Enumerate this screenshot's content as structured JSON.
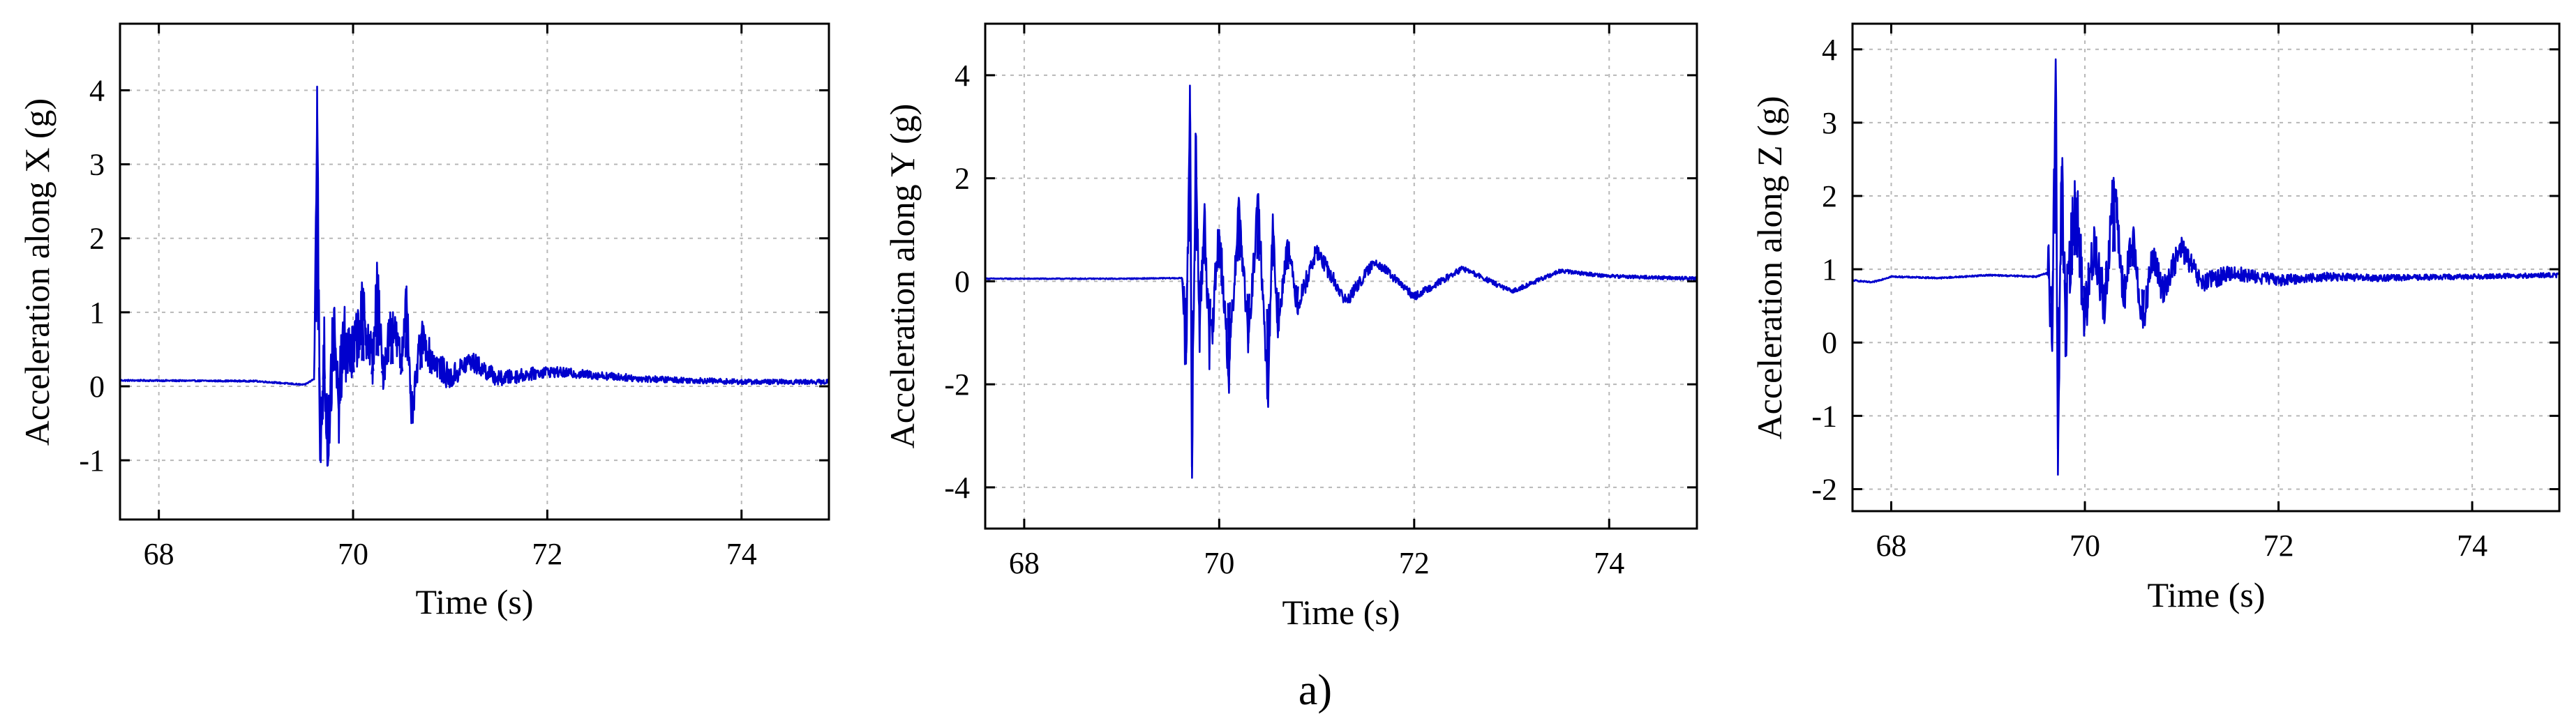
{
  "figure_label": "a)",
  "colors": {
    "series": "#0000cd",
    "grid": "#b8b8b8"
  },
  "chart_data": [
    {
      "type": "line",
      "xlabel": "Time (s)",
      "ylabel": "Acceleration along X (g)",
      "xlim": [
        67.6,
        74.9
      ],
      "ylim": [
        -1.8,
        4.9
      ],
      "xticks": [
        68,
        70,
        72,
        74
      ],
      "yticks": [
        -1,
        0,
        1,
        2,
        3,
        4
      ],
      "grid": true,
      "series": [
        {
          "color": "#0000cd",
          "baseline": 0.07,
          "onset": 69.62,
          "x": [
            67.6,
            69.0,
            69.5,
            69.6,
            69.63,
            69.66,
            69.7,
            69.74,
            69.8,
            69.85,
            69.9,
            70.0,
            70.1,
            70.2,
            70.25,
            70.3,
            70.4,
            70.5,
            70.55,
            70.6,
            70.7,
            70.8,
            71.0,
            71.2,
            71.5,
            72.0,
            72.5,
            73.0,
            74.0,
            74.9
          ],
          "y": [
            0.08,
            0.07,
            0.02,
            0.1,
            4.05,
            -1.0,
            0.5,
            -0.8,
            0.75,
            -0.3,
            0.6,
            0.4,
            1.05,
            0.3,
            1.45,
            0.2,
            0.9,
            0.3,
            1.35,
            -0.5,
            0.7,
            0.4,
            0.1,
            0.35,
            0.1,
            0.2,
            0.15,
            0.1,
            0.06,
            0.06
          ]
        }
      ]
    },
    {
      "type": "line",
      "xlabel": "Time (s)",
      "ylabel": "Acceleration along Y (g)",
      "xlim": [
        67.6,
        74.9
      ],
      "ylim": [
        -4.8,
        5.0
      ],
      "xticks": [
        68,
        70,
        72,
        74
      ],
      "yticks": [
        -4,
        -2,
        0,
        2,
        4
      ],
      "grid": true,
      "series": [
        {
          "color": "#0000cd",
          "baseline": 0.05,
          "onset": 69.62,
          "x": [
            67.6,
            69.0,
            69.5,
            69.62,
            69.66,
            69.7,
            69.72,
            69.76,
            69.8,
            69.85,
            69.9,
            70.0,
            70.1,
            70.2,
            70.3,
            70.4,
            70.5,
            70.55,
            70.6,
            70.7,
            70.8,
            71.0,
            71.3,
            71.6,
            72.0,
            72.5,
            73.0,
            73.5,
            74.0,
            74.9
          ],
          "y": [
            0.05,
            0.05,
            0.06,
            0.06,
            -1.6,
            3.8,
            -3.6,
            2.8,
            -1.0,
            1.5,
            -1.5,
            1.0,
            -1.8,
            1.5,
            -1.2,
            1.6,
            -2.3,
            1.3,
            -1.0,
            0.8,
            -0.5,
            0.6,
            -0.4,
            0.4,
            -0.3,
            0.25,
            -0.2,
            0.2,
            0.1,
            0.05
          ]
        }
      ]
    },
    {
      "type": "line",
      "xlabel": "Time (s)",
      "ylabel": "Acceleration along Z (g)",
      "xlim": [
        67.6,
        74.9
      ],
      "ylim": [
        -2.3,
        4.35
      ],
      "xticks": [
        68,
        70,
        72,
        74
      ],
      "yticks": [
        -2,
        -1,
        0,
        1,
        2,
        3,
        4
      ],
      "grid": true,
      "series": [
        {
          "color": "#0000cd",
          "baseline": 0.9,
          "onset": 69.62,
          "x": [
            67.6,
            67.8,
            68.0,
            68.5,
            69.0,
            69.5,
            69.62,
            69.66,
            69.7,
            69.72,
            69.76,
            69.8,
            69.9,
            70.0,
            70.1,
            70.2,
            70.3,
            70.4,
            70.5,
            70.6,
            70.7,
            70.8,
            71.0,
            71.2,
            71.5,
            72.0,
            72.5,
            73.0,
            74.0,
            74.9
          ],
          "y": [
            0.85,
            0.82,
            0.9,
            0.88,
            0.92,
            0.9,
            0.95,
            0.3,
            3.7,
            -1.45,
            2.4,
            0.2,
            2.05,
            0.3,
            1.4,
            0.45,
            2.2,
            0.6,
            1.45,
            0.2,
            1.2,
            0.7,
            1.3,
            0.8,
            0.95,
            0.85,
            0.9,
            0.88,
            0.9,
            0.92
          ]
        }
      ]
    }
  ]
}
